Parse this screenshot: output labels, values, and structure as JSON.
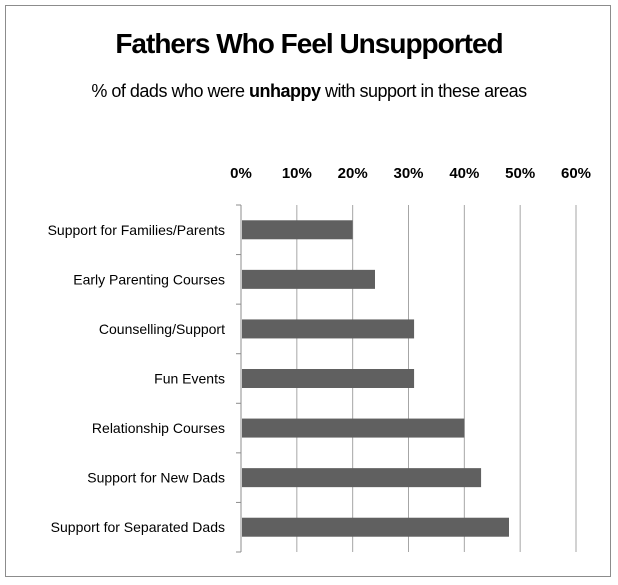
{
  "chart_data": {
    "type": "bar",
    "orientation": "horizontal",
    "title": "Fathers Who Feel Unsupported",
    "subtitle": {
      "before": "% of dads who were ",
      "emphasis": "unhappy",
      "after": " with support in these areas"
    },
    "xlabel": "",
    "ylabel": "",
    "categories": [
      "Support for Families/Parents",
      "Early Parenting Courses",
      "Counselling/Support",
      "Fun Events",
      "Relationship Courses",
      "Support for New Dads",
      "Support for Separated Dads"
    ],
    "values": [
      20,
      24,
      31,
      31,
      40,
      43,
      48
    ],
    "value_unit": "%",
    "xlim": [
      0,
      60
    ],
    "x_ticks": [
      "0%",
      "10%",
      "20%",
      "30%",
      "40%",
      "50%",
      "60%"
    ],
    "x_axis_position": "top",
    "grid": true,
    "legend": "none",
    "bar_color": "#606060",
    "grid_color": "#a6a6a6"
  }
}
